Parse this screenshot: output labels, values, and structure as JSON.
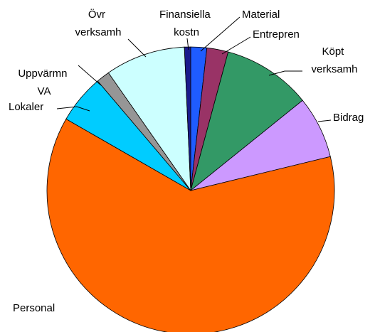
{
  "chart_data": {
    "type": "pie",
    "categories": [
      "Material",
      "Entrepren",
      "Köpt verksamh",
      "Bidrag",
      "Personal",
      "Lokaler",
      "Uppvärmn VA",
      "Övr verksamh",
      "Finansiella kostn"
    ],
    "values": [
      1.8,
      2.4,
      10,
      7,
      62.1,
      5.5,
      1.5,
      9,
      0.7
    ],
    "colors": [
      "#1f5cff",
      "#993366",
      "#339966",
      "#cc99ff",
      "#ff6600",
      "#00ccff",
      "#969696",
      "#ccffff",
      "#1a1a8c"
    ]
  }
}
